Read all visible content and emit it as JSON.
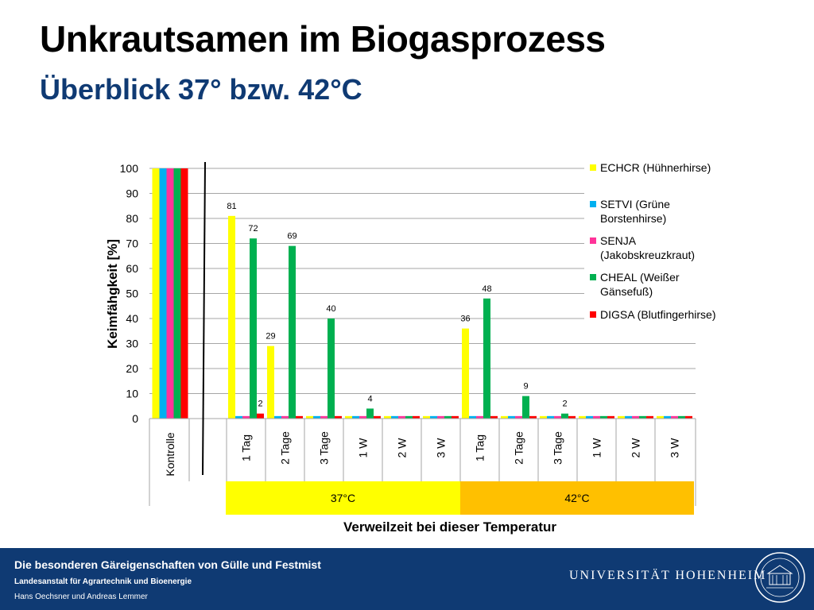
{
  "title": "Unkrautsamen im Biogasprozess",
  "subtitle": "Überblick 37° bzw. 42°C",
  "footer": {
    "line1": "Die besonderen Gäreigenschaften von Gülle und Festmist",
    "line2": "Landesanstalt für Agrartechnik und Bioenergie",
    "line3": "Hans Oechsner  und  Andreas Lemmer",
    "university": "UNIVERSITÄT HOHENHEIM"
  },
  "chart_data": {
    "type": "bar",
    "ylabel": "Keimfähgkeit [%]",
    "xlabel": "Verweilzeit bei dieser Temperatur",
    "ylim": [
      0,
      100
    ],
    "yticks": [
      0,
      10,
      20,
      30,
      40,
      50,
      60,
      70,
      80,
      90,
      100
    ],
    "grid": true,
    "legend_position": "right",
    "categories": [
      "Kontrolle",
      "1 Tag",
      "2 Tage",
      "3 Tage",
      "1 W",
      "2 W",
      "3 W",
      "1 Tag",
      "2 Tage",
      "3 Tage",
      "1 W",
      "2 W",
      "3 W"
    ],
    "groups": [
      {
        "label": "37°C",
        "color": "#ffff00",
        "from": 1,
        "to": 6
      },
      {
        "label": "42°C",
        "color": "#ffc000",
        "from": 7,
        "to": 12
      }
    ],
    "series": [
      {
        "name": "ECHCR (Hühnerhirse)",
        "color": "#ffff00",
        "values": [
          100,
          81,
          29,
          1,
          1,
          1,
          1,
          36,
          1,
          1,
          1,
          1,
          1
        ]
      },
      {
        "name": "SETVI (Grüne Borstenhirse)",
        "color": "#00b0f0",
        "values": [
          100,
          1,
          1,
          1,
          1,
          1,
          1,
          1,
          1,
          1,
          1,
          1,
          1
        ]
      },
      {
        "name": "SENJA (Jakobskreuzkraut)",
        "color": "#ff3399",
        "values": [
          100,
          1,
          1,
          1,
          1,
          1,
          1,
          1,
          1,
          1,
          1,
          1,
          1
        ]
      },
      {
        "name": "CHEAL (Weißer Gänsefuß)",
        "color": "#00b050",
        "values": [
          100,
          72,
          69,
          40,
          4,
          1,
          1,
          48,
          9,
          2,
          1,
          1,
          1
        ]
      },
      {
        "name": "DIGSA (Blutfingerhirse)",
        "color": "#ff0000",
        "values": [
          100,
          2,
          1,
          1,
          1,
          1,
          1,
          1,
          1,
          1,
          1,
          1,
          1
        ]
      }
    ],
    "data_labels": [
      {
        "category": 1,
        "series": 0,
        "text": "81"
      },
      {
        "category": 1,
        "series": 3,
        "text": "72"
      },
      {
        "category": 1,
        "series": 4,
        "text": "2"
      },
      {
        "category": 2,
        "series": 0,
        "text": "29"
      },
      {
        "category": 2,
        "series": 3,
        "text": "69"
      },
      {
        "category": 3,
        "series": 3,
        "text": "40"
      },
      {
        "category": 4,
        "series": 3,
        "text": "4"
      },
      {
        "category": 7,
        "series": 0,
        "text": "36"
      },
      {
        "category": 7,
        "series": 3,
        "text": "48"
      },
      {
        "category": 8,
        "series": 3,
        "text": "9"
      },
      {
        "category": 9,
        "series": 3,
        "text": "2"
      }
    ]
  }
}
